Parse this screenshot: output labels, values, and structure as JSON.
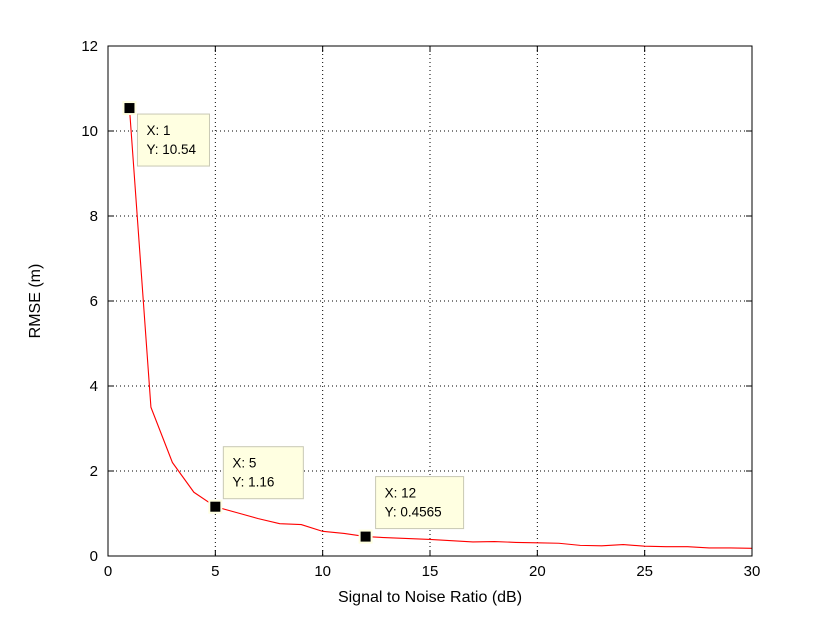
{
  "chart_data": {
    "type": "line",
    "title": "",
    "xlabel": "Signal to Noise Ratio (dB)",
    "ylabel": "RMSE (m)",
    "xlim": [
      0,
      30
    ],
    "ylim": [
      0,
      12
    ],
    "xticks": [
      0,
      5,
      10,
      15,
      20,
      25,
      30
    ],
    "yticks": [
      0,
      2,
      4,
      6,
      8,
      10,
      12
    ],
    "grid": true,
    "grid_style": "dotted",
    "line_color": "#ff0000",
    "series": [
      {
        "x": [
          1,
          2,
          3,
          4,
          5,
          6,
          7,
          8,
          9,
          10,
          11,
          12,
          13,
          14,
          15,
          16,
          17,
          18,
          19,
          20,
          21,
          22,
          23,
          24,
          25,
          26,
          27,
          28,
          29,
          30
        ],
        "y": [
          10.54,
          3.5,
          2.2,
          1.5,
          1.16,
          1.02,
          0.88,
          0.76,
          0.74,
          0.58,
          0.53,
          0.4565,
          0.43,
          0.41,
          0.39,
          0.36,
          0.33,
          0.34,
          0.32,
          0.31,
          0.3,
          0.25,
          0.24,
          0.27,
          0.23,
          0.22,
          0.22,
          0.19,
          0.19,
          0.18
        ]
      }
    ],
    "datatips": [
      {
        "x_label": "X: 1",
        "y_label": "Y: 10.54",
        "x": 1,
        "y": 10.54
      },
      {
        "x_label": "X: 5",
        "y_label": "Y: 1.16",
        "x": 5,
        "y": 1.16
      },
      {
        "x_label": "X: 12",
        "y_label": "Y: 0.4565",
        "x": 12,
        "y": 0.4565
      }
    ]
  }
}
